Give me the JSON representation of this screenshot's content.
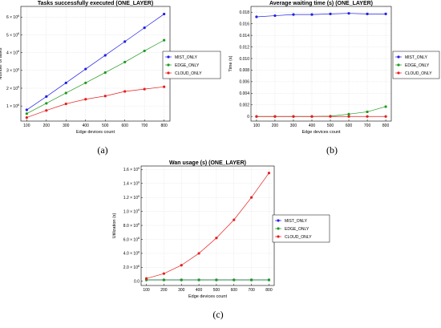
{
  "panels": [
    {
      "label": "(a)"
    },
    {
      "label": "(b)"
    },
    {
      "label": "(c)"
    }
  ],
  "chart_data": [
    {
      "type": "line",
      "title": "Tasks successfully executed (ONE_LAYER)",
      "xlabel": "Edge devices count",
      "ylabel": "Number of tasks",
      "x": [
        100,
        200,
        300,
        400,
        500,
        600,
        700,
        800
      ],
      "xlim": [
        70,
        830
      ],
      "ylim": [
        150000,
        6600000
      ],
      "x_ticks": [
        "100",
        "200",
        "300",
        "400",
        "500",
        "600",
        "700",
        "800"
      ],
      "y_ticks": [
        {
          "value": 1000000,
          "base": "1 × 10",
          "exp": "6"
        },
        {
          "value": 2000000,
          "base": "2 × 10",
          "exp": "6"
        },
        {
          "value": 3000000,
          "base": "3 × 10",
          "exp": "6"
        },
        {
          "value": 4000000,
          "base": "4 × 10",
          "exp": "6"
        },
        {
          "value": 5000000,
          "base": "5 × 10",
          "exp": "6"
        },
        {
          "value": 6000000,
          "base": "6 × 10",
          "exp": "6"
        }
      ],
      "grid": true,
      "legend_position": "right",
      "series": [
        {
          "name": "MIST_ONLY",
          "color": "#1f1fe6",
          "values": [
            780000,
            1530000,
            2300000,
            3080000,
            3850000,
            4620000,
            5400000,
            6170000
          ]
        },
        {
          "name": "EDGE_ONLY",
          "color": "#1e9a1e",
          "values": [
            570000,
            1150000,
            1730000,
            2300000,
            2880000,
            3470000,
            4100000,
            4700000
          ]
        },
        {
          "name": "CLOUD_ONLY",
          "color": "#e61e1e",
          "values": [
            350000,
            750000,
            1120000,
            1380000,
            1560000,
            1820000,
            1950000,
            2080000
          ]
        }
      ]
    },
    {
      "type": "line",
      "title": "Average waiting time (s) (ONE_LAYER)",
      "xlabel": "Edge devices count",
      "ylabel": "Time (s)",
      "x": [
        100,
        200,
        300,
        400,
        500,
        600,
        700,
        800
      ],
      "xlim": [
        70,
        830
      ],
      "ylim": [
        -0.0008,
        0.019
      ],
      "x_ticks": [
        "100",
        "200",
        "300",
        "400",
        "500",
        "600",
        "700",
        "800"
      ],
      "y_ticks": [
        {
          "value": 0,
          "label": "0"
        },
        {
          "value": 0.002,
          "label": "0.002"
        },
        {
          "value": 0.004,
          "label": "0.004"
        },
        {
          "value": 0.006,
          "label": "0.006"
        },
        {
          "value": 0.008,
          "label": "0.008"
        },
        {
          "value": 0.01,
          "label": "0.010"
        },
        {
          "value": 0.012,
          "label": "0.012"
        },
        {
          "value": 0.014,
          "label": "0.014"
        },
        {
          "value": 0.016,
          "label": "0.016"
        },
        {
          "value": 0.018,
          "label": "0.018"
        }
      ],
      "grid": true,
      "legend_position": "right",
      "series": [
        {
          "name": "MIST_ONLY",
          "color": "#1f1fe6",
          "values": [
            0.0172,
            0.0174,
            0.0176,
            0.0176,
            0.0177,
            0.0178,
            0.0177,
            0.0177
          ]
        },
        {
          "name": "EDGE_ONLY",
          "color": "#1e9a1e",
          "values": [
            0.0,
            0.0,
            0.0,
            0.0,
            5e-05,
            0.0004,
            0.0008,
            0.0017
          ]
        },
        {
          "name": "CLOUD_ONLY",
          "color": "#e61e1e",
          "values": [
            0.0,
            0.0,
            0.0,
            0.0,
            0.0,
            0.0,
            0.0,
            0.0
          ]
        }
      ]
    },
    {
      "type": "line",
      "title": "Wan usage (s) (ONE_LAYER)",
      "xlabel": "Edge devices count",
      "ylabel": "Utilization (s)",
      "x": [
        100,
        200,
        300,
        400,
        500,
        600,
        700,
        800
      ],
      "xlim": [
        70,
        830
      ],
      "ylim": [
        -60000000,
        1650000000
      ],
      "x_ticks": [
        "100",
        "200",
        "300",
        "400",
        "500",
        "600",
        "700",
        "800"
      ],
      "y_ticks": [
        {
          "value": 0,
          "base": "0.0",
          "exp": ""
        },
        {
          "value": 200000000,
          "base": "2.0 × 10",
          "exp": "8"
        },
        {
          "value": 400000000,
          "base": "4.0 × 10",
          "exp": "8"
        },
        {
          "value": 600000000,
          "base": "6.0 × 10",
          "exp": "8"
        },
        {
          "value": 800000000,
          "base": "8.0 × 10",
          "exp": "8"
        },
        {
          "value": 1000000000,
          "base": "1.0 × 10",
          "exp": "9"
        },
        {
          "value": 1200000000,
          "base": "1.2 × 10",
          "exp": "9"
        },
        {
          "value": 1400000000,
          "base": "1.4 × 10",
          "exp": "9"
        },
        {
          "value": 1600000000,
          "base": "1.6 × 10",
          "exp": "9"
        }
      ],
      "grid": true,
      "legend_position": "right",
      "series": [
        {
          "name": "MIST_ONLY",
          "color": "#1f1fe6",
          "values": [
            20000000,
            20000000,
            20000000,
            20000000,
            20000000,
            20000000,
            20000000,
            20000000
          ]
        },
        {
          "name": "EDGE_ONLY",
          "color": "#1e9a1e",
          "values": [
            20000000,
            20000000,
            20000000,
            20000000,
            20000000,
            20000000,
            20000000,
            20000000
          ]
        },
        {
          "name": "CLOUD_ONLY",
          "color": "#e61e1e",
          "values": [
            40000000,
            110000000,
            230000000,
            400000000,
            620000000,
            880000000,
            1200000000,
            1550000000
          ]
        }
      ]
    }
  ]
}
